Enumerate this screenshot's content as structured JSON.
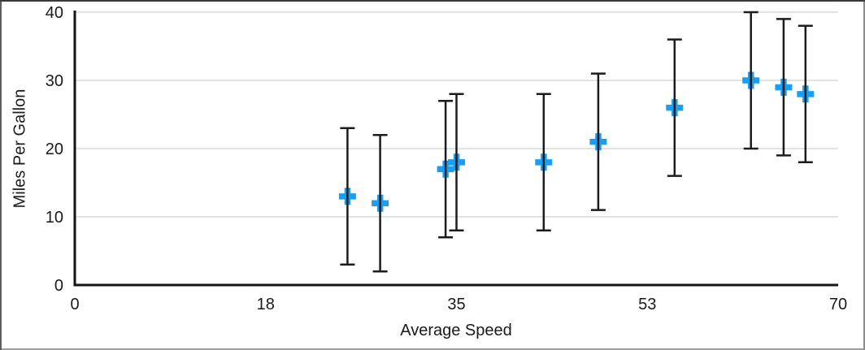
{
  "figure": {
    "background": "#ffffff"
  },
  "chart_data": {
    "type": "scatter",
    "title": "",
    "xlabel": "Average Speed",
    "ylabel": "Miles Per Gallon",
    "xlim": [
      0,
      70
    ],
    "ylim": [
      0,
      40
    ],
    "x_ticks": [
      {
        "value": 0,
        "label": "0"
      },
      {
        "value": 17.5,
        "label": "18"
      },
      {
        "value": 35,
        "label": "35"
      },
      {
        "value": 52.5,
        "label": "53"
      },
      {
        "value": 70,
        "label": "70"
      }
    ],
    "y_ticks": [
      {
        "value": 0,
        "label": "0"
      },
      {
        "value": 10,
        "label": "10"
      },
      {
        "value": 20,
        "label": "20"
      },
      {
        "value": 30,
        "label": "30"
      },
      {
        "value": 40,
        "label": "40"
      }
    ],
    "grid": {
      "horizontal": true,
      "vertical": false,
      "color": "#d9d9d9",
      "line_width": 1.5
    },
    "legend": "none",
    "axis_color": "#141414",
    "axis_line_width": 3,
    "text_color": "#1a1a1a",
    "tick_font_size": 20,
    "marker": {
      "shape": "plus",
      "color": "#189EF2",
      "size": 21,
      "arm_thickness": 7.5
    },
    "error_bars": {
      "direction": "y",
      "plus": 10,
      "minus": 10,
      "color": "#1c1c1c",
      "cap_width": 18,
      "line_width": 2.5
    },
    "points": [
      {
        "x": 25,
        "y": 13
      },
      {
        "x": 28,
        "y": 12
      },
      {
        "x": 34,
        "y": 17
      },
      {
        "x": 35,
        "y": 18
      },
      {
        "x": 43,
        "y": 18
      },
      {
        "x": 48,
        "y": 21
      },
      {
        "x": 55,
        "y": 26
      },
      {
        "x": 62,
        "y": 30
      },
      {
        "x": 65,
        "y": 29
      },
      {
        "x": 67,
        "y": 28
      }
    ]
  }
}
